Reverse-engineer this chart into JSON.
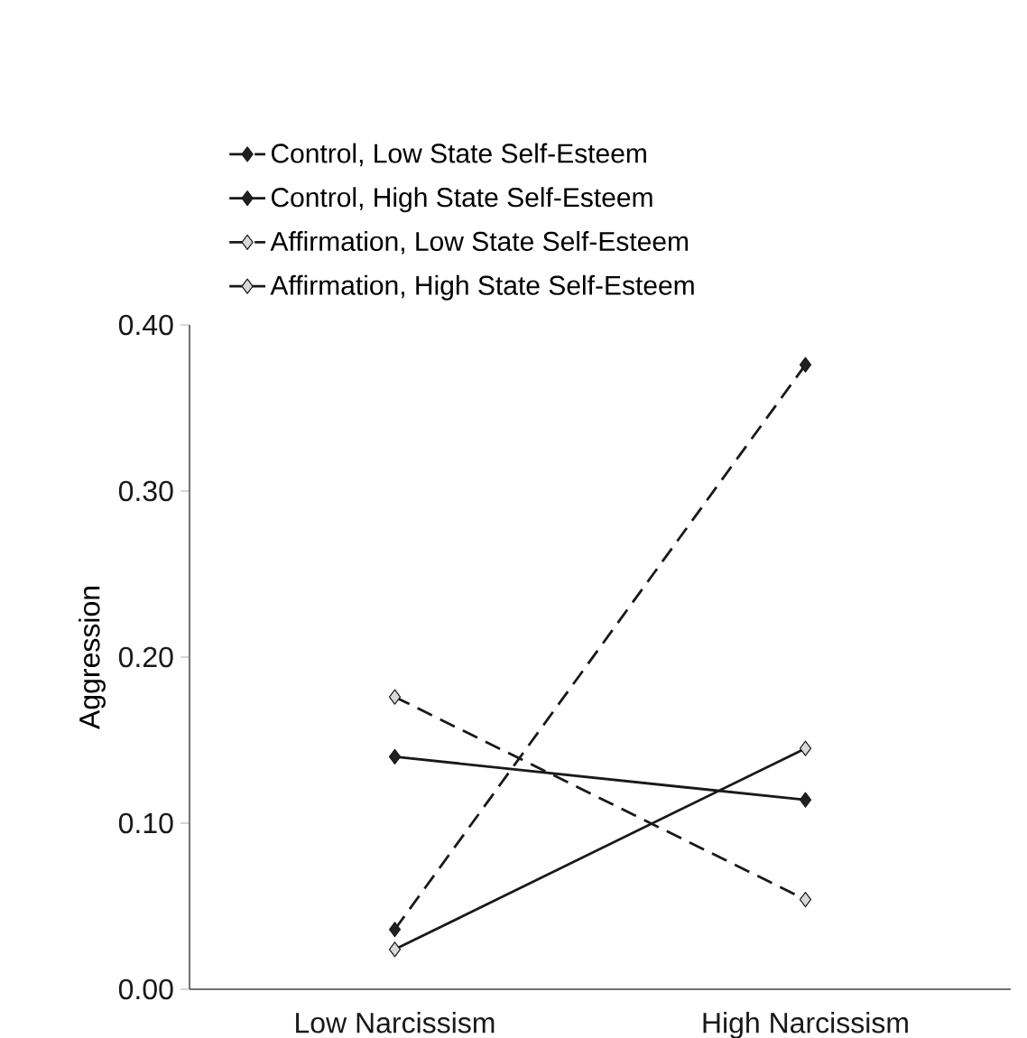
{
  "chart_data": {
    "type": "line",
    "ylabel": "Aggression",
    "categories": [
      "Low Narcissism",
      "High Narcissism"
    ],
    "series": [
      {
        "name": "Control, Low State Self-Esteem",
        "color": "#231f20",
        "line_style": "dashed",
        "values": [
          0.036,
          0.376
        ]
      },
      {
        "name": "Control, High State Self-Esteem",
        "color": "#231f20",
        "line_style": "solid",
        "values": [
          0.14,
          0.114
        ]
      },
      {
        "name": "Affirmation, Low State Self-Esteem",
        "color": "#d9d9d9",
        "line_style": "dashed",
        "values": [
          0.176,
          0.054
        ]
      },
      {
        "name": "Affirmation, High State Self-Esteem",
        "color": "#d9d9d9",
        "line_style": "solid",
        "values": [
          0.024,
          0.145
        ]
      }
    ],
    "ylim": [
      0,
      0.4
    ],
    "yticks": [
      {
        "value": 0,
        "label": "0.00"
      },
      {
        "value": 0.1,
        "label": "0.10"
      },
      {
        "value": 0.2,
        "label": "0.20"
      },
      {
        "value": 0.3,
        "label": "0.30"
      },
      {
        "value": 0.4,
        "label": "0.40"
      }
    ],
    "marker": "diamond",
    "grid": false,
    "legend": "top"
  }
}
